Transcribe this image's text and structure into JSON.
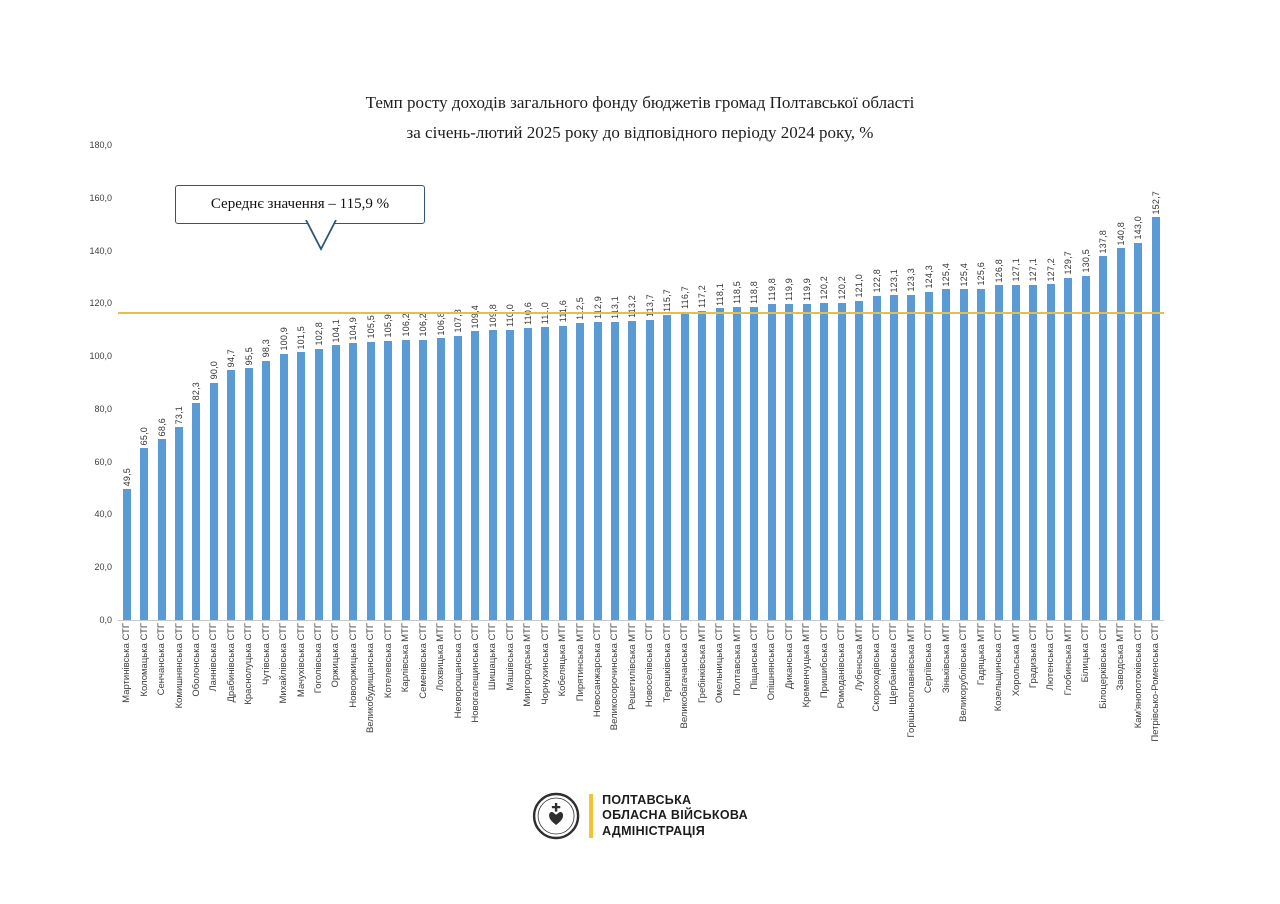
{
  "title": {
    "line1": "Темп росту доходів загального фонду бюджетів громад Полтавської області",
    "line2": "за січень-лютий 2025 року до відповідного періоду 2024 року, %"
  },
  "annotation": {
    "label": "Середнє значення – 115,9 %"
  },
  "footer_logo": {
    "line1": "ПОЛТАВСЬКА",
    "line2": "ОБЛАСНА ВІЙСЬКОВА",
    "line3": "АДМІНІСТРАЦІЯ"
  },
  "colors": {
    "bar": "#5b9bd5",
    "average_line": "#e6be4b",
    "callout_border": "#2e5871",
    "accent_yellow": "#f2c233"
  },
  "chart_data": {
    "type": "bar",
    "title": "Темп росту доходів загального фонду бюджетів громад Полтавської області за січень-лютий 2025 року до відповідного періоду 2024 року, %",
    "average_value": 115.9,
    "average_label": "Середнє значення – 115,9 %",
    "ylim": [
      0,
      180
    ],
    "ytick_labels": [
      "0,0",
      "20,0",
      "40,0",
      "60,0",
      "80,0",
      "100,0",
      "120,0",
      "140,0",
      "160,0",
      "180,0"
    ],
    "grid": false,
    "legend": false,
    "categories": [
      "Мартинівська СТГ",
      "Коломацька СТГ",
      "Сенчанська СТГ",
      "Комишнянська СТГ",
      "Оболонська СТГ",
      "Ланнівська СТГ",
      "Драбинівська СТГ",
      "Краснолуцька СТГ",
      "Чутівська СТГ",
      "Михайлівська СТГ",
      "Мачухівська СТГ",
      "Гоголівська СТГ",
      "Оржицька СТГ",
      "Новооржицька СТГ",
      "Великобудищанська СТГ",
      "Котелевська СТГ",
      "Карлівська МТГ",
      "Семенівська СТГ",
      "Лохвицька МТГ",
      "Нехворощанська СТГ",
      "Новогалещинська СТГ",
      "Шишацька СТГ",
      "Машівська СТГ",
      "Миргородська МТГ",
      "Чорнухинська СТГ",
      "Кобеляцька МТГ",
      "Пирятинська МТГ",
      "Новосанжарська СТГ",
      "Великосорочинська СТГ",
      "Решетилівська МТГ",
      "Новоселівська СТГ",
      "Терешківська СТГ",
      "Великобагачанська СТГ",
      "Гребінківська МТГ",
      "Омельницька СТГ",
      "Полтавська МТГ",
      "Піщанська СТГ",
      "Опішнянська СТГ",
      "Диканська СТГ",
      "Кременчуцька МТГ",
      "Пришибська СТГ",
      "Ромоданівська СТГ",
      "Лубенська МТГ",
      "Скороходівська СТГ",
      "Щербанівська СТГ",
      "Горішньоплавнівська МТГ",
      "Сергіївська СТГ",
      "Зіньківська МТГ",
      "Великорублівська СТГ",
      "Гадяцька МТГ",
      "Козельщинська СТГ",
      "Хорольська МТГ",
      "Градизька СТГ",
      "Лютенська СТГ",
      "Глобинська МТГ",
      "Білицька СТГ",
      "Білоцерківська СТГ",
      "Заводська МТГ",
      "Кам'янопотоківська СТГ",
      "Петрівсько-Роменська СТГ"
    ],
    "values": [
      49.5,
      65.0,
      68.6,
      73.1,
      82.3,
      90.0,
      94.7,
      95.5,
      98.3,
      100.9,
      101.5,
      102.8,
      104.1,
      104.9,
      105.5,
      105.9,
      106.2,
      106.2,
      106.8,
      107.8,
      109.4,
      109.8,
      110.0,
      110.6,
      111.0,
      111.6,
      112.5,
      112.9,
      113.1,
      113.2,
      113.7,
      115.7,
      116.7,
      117.2,
      118.1,
      118.5,
      118.8,
      119.8,
      119.9,
      119.9,
      120.2,
      120.2,
      121.0,
      122.8,
      123.1,
      123.3,
      124.3,
      125.4,
      125.4,
      125.6,
      126.8,
      127.1,
      127.1,
      127.2,
      129.7,
      130.5,
      137.8,
      140.8,
      143.0,
      152.7
    ]
  }
}
